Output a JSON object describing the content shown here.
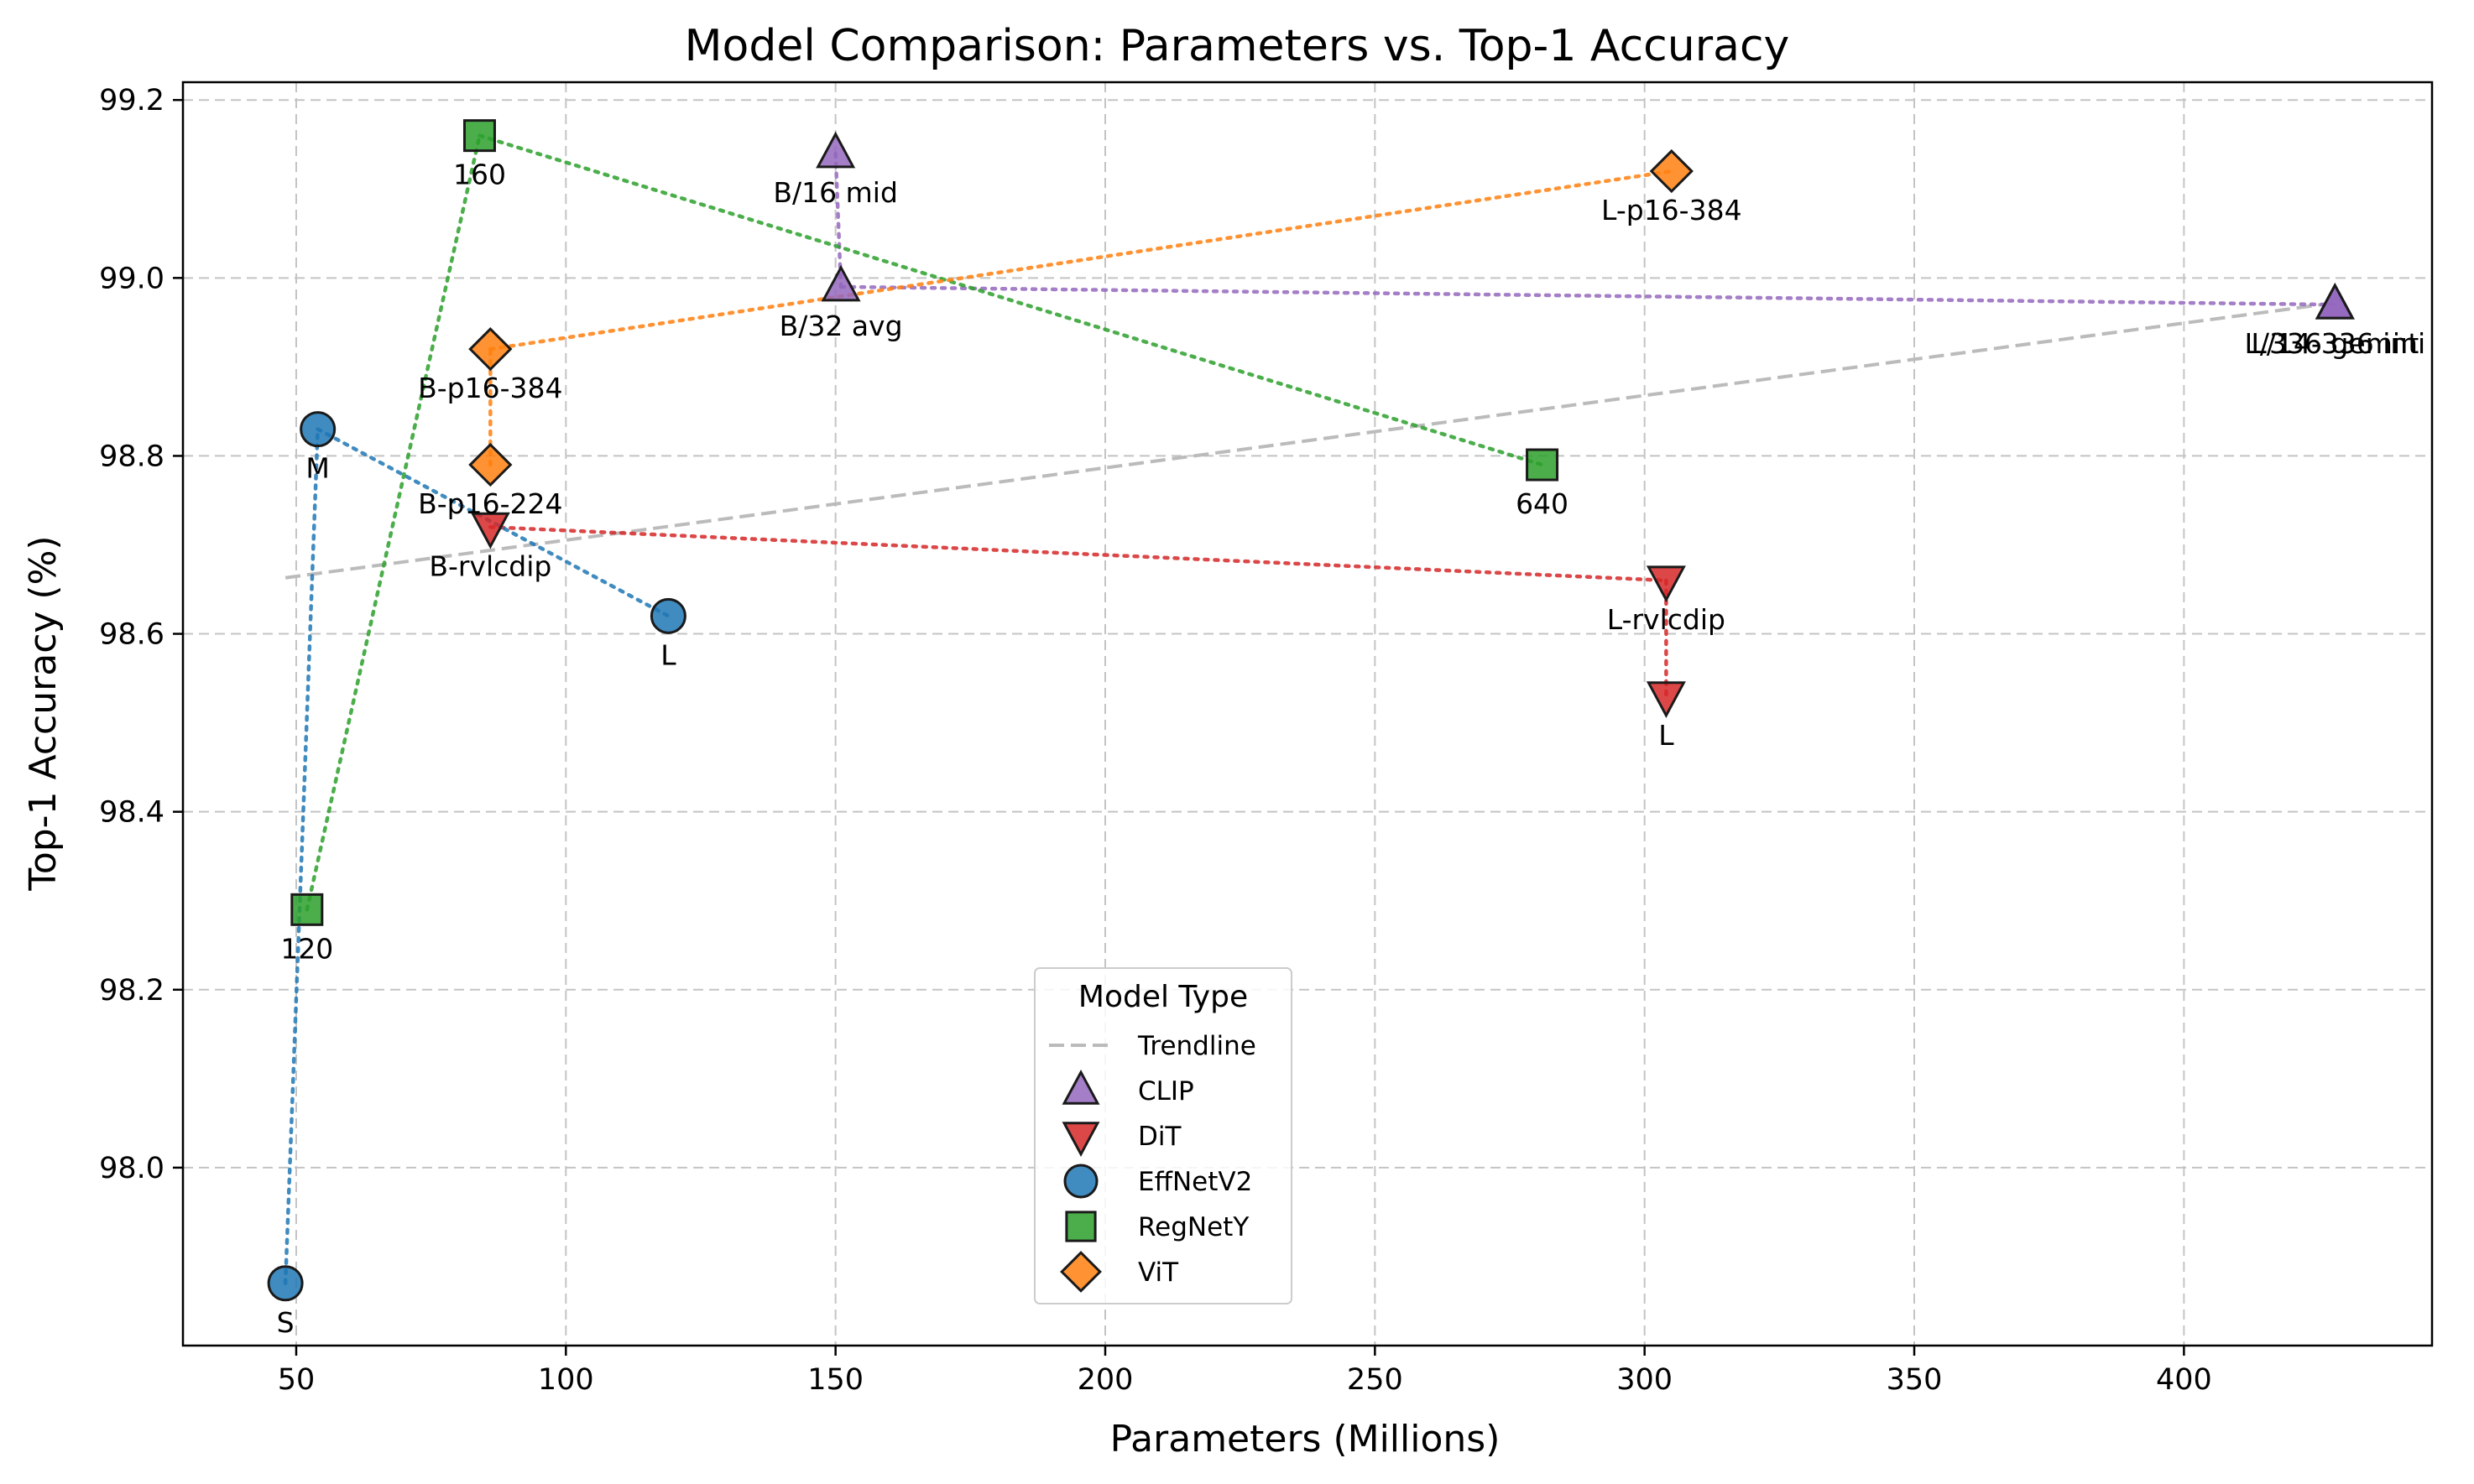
{
  "chart_data": {
    "type": "scatter",
    "title": "Model Comparison: Parameters vs. Top-1 Accuracy",
    "xlabel": "Parameters (Millions)",
    "ylabel": "Top-1 Accuracy (%)",
    "xlim": [
      29,
      446
    ],
    "ylim": [
      97.8,
      99.22
    ],
    "x_ticks": [
      "50",
      "100",
      "150",
      "200",
      "250",
      "300",
      "350",
      "400"
    ],
    "x_tick_values": [
      50,
      100,
      150,
      200,
      250,
      300,
      350,
      400
    ],
    "y_ticks": [
      "98.0",
      "98.2",
      "98.4",
      "98.6",
      "98.8",
      "99.0",
      "99.2"
    ],
    "y_tick_values": [
      98.0,
      98.2,
      98.4,
      98.6,
      98.8,
      99.0,
      99.2
    ],
    "grid": true,
    "legend": {
      "title": "Model Type",
      "placement": "lower-center",
      "trendline_label": "Trendline"
    },
    "trendline": {
      "x": [
        48,
        428
      ],
      "y": [
        98.663,
        98.972
      ],
      "color": "#bbbbbb"
    },
    "series": [
      {
        "name": "CLIP",
        "marker": "triangle-up",
        "color": "#9467bd",
        "points": [
          {
            "label": "B/16 mid",
            "x": 150,
            "y": 99.14
          },
          {
            "label": "B/32 avg",
            "x": 151,
            "y": 98.99
          },
          {
            "label": "L/14-336 int",
            "x": 428,
            "y": 98.97
          },
          {
            "label": "L/336 gemini",
            "x": 428,
            "y": 98.97
          }
        ]
      },
      {
        "name": "DiT",
        "marker": "triangle-down",
        "color": "#d62728",
        "points": [
          {
            "label": "B-rvlcdip",
            "x": 86,
            "y": 98.72
          },
          {
            "label": "L-rvlcdip",
            "x": 304,
            "y": 98.66
          },
          {
            "label": "L",
            "x": 304,
            "y": 98.53
          }
        ]
      },
      {
        "name": "EffNetV2",
        "marker": "circle",
        "color": "#1f77b4",
        "points": [
          {
            "label": "S",
            "x": 48,
            "y": 97.87
          },
          {
            "label": "M",
            "x": 54,
            "y": 98.83
          },
          {
            "label": "L",
            "x": 119,
            "y": 98.62
          }
        ]
      },
      {
        "name": "RegNetY",
        "marker": "square",
        "color": "#2ca02c",
        "points": [
          {
            "label": "120",
            "x": 52,
            "y": 98.29
          },
          {
            "label": "160",
            "x": 84,
            "y": 99.16
          },
          {
            "label": "640",
            "x": 281,
            "y": 98.79
          }
        ]
      },
      {
        "name": "ViT",
        "marker": "diamond",
        "color": "#ff7f0e",
        "points": [
          {
            "label": "B-p16-224",
            "x": 86,
            "y": 98.79
          },
          {
            "label": "B-p16-384",
            "x": 86,
            "y": 98.92
          },
          {
            "label": "L-p16-384",
            "x": 305,
            "y": 99.12
          }
        ]
      }
    ],
    "connectors": {
      "CLIP": [
        [
          0,
          1
        ],
        [
          1,
          2
        ]
      ],
      "DiT": [
        [
          0,
          1
        ],
        [
          1,
          2
        ]
      ],
      "EffNetV2": [
        [
          0,
          1
        ],
        [
          1,
          2
        ]
      ],
      "RegNetY": [
        [
          0,
          1
        ],
        [
          1,
          2
        ]
      ],
      "ViT": [
        [
          0,
          1
        ],
        [
          1,
          2
        ]
      ]
    }
  }
}
